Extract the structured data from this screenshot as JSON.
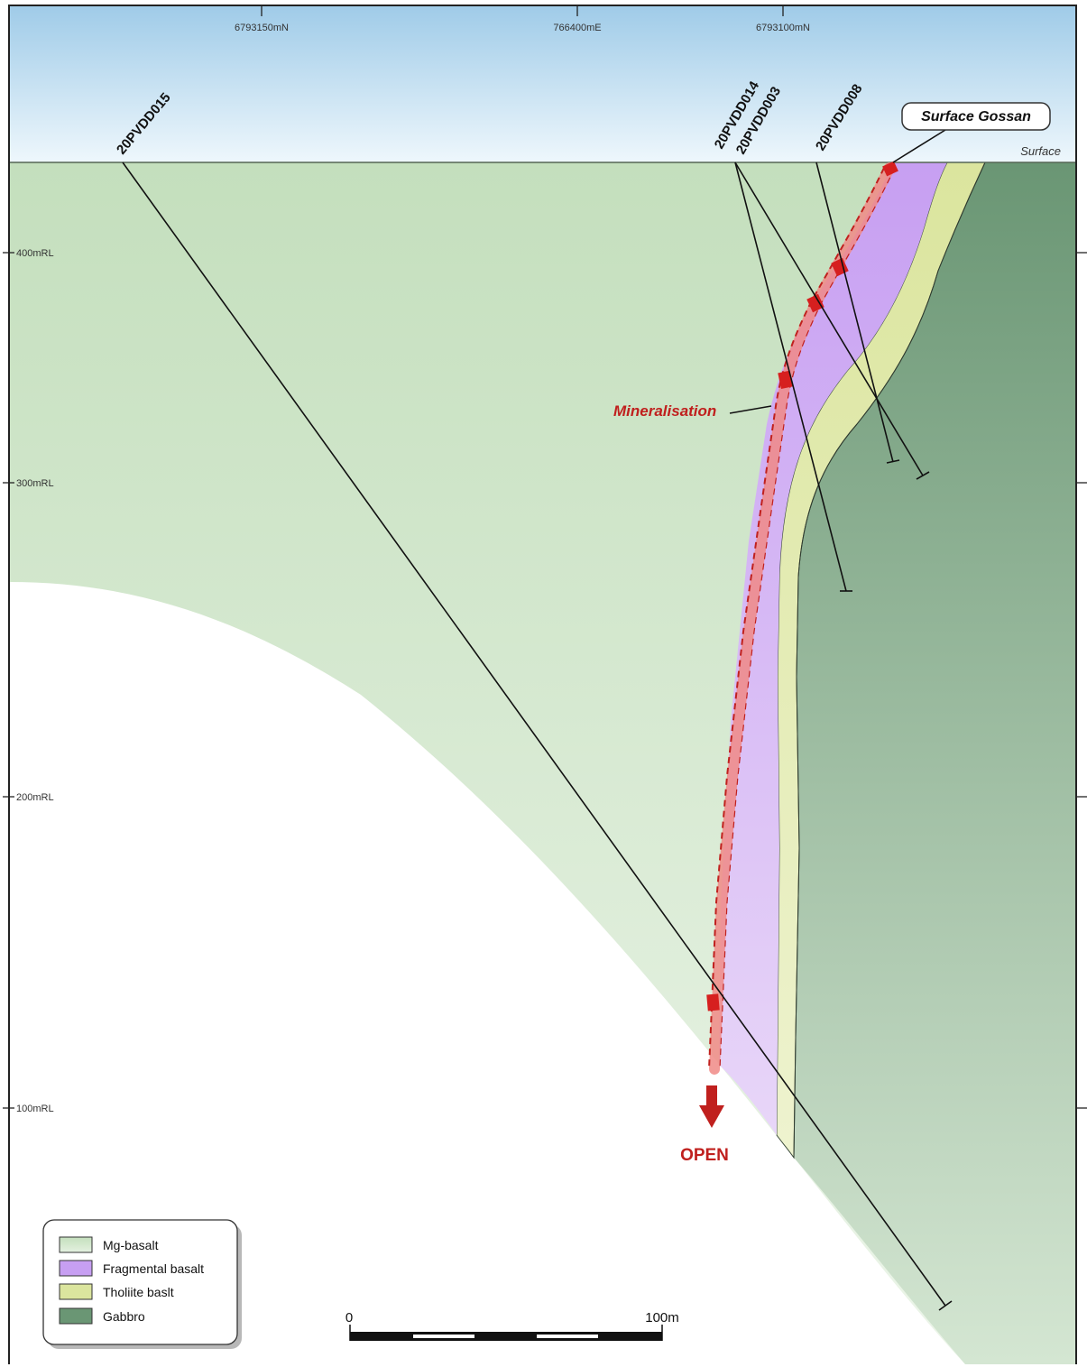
{
  "colors": {
    "mg_basalt": "#c9e2c2",
    "fragmental_basalt": "#cda8f2",
    "tholiite_basalt": "#e0e8a8",
    "gabbro": "#6f9a78",
    "mineralisation": "#c0201e",
    "sky": "#cfe6f5"
  },
  "grid": {
    "northings": [
      "6793150mN",
      "766400mE",
      "6793100mN"
    ],
    "levels": [
      "400mRL",
      "300mRL",
      "200mRL",
      "100mRL"
    ]
  },
  "holes": [
    "20PVDD015",
    "20PVDD014",
    "20PVDD003",
    "20PVDD008"
  ],
  "labels": {
    "surface": "Surface",
    "surface_gossan": "Surface Gossan",
    "mineralisation": "Mineralisation",
    "open": "OPEN"
  },
  "legend": {
    "items": [
      {
        "label": "Mg-basalt",
        "color": "#c9e2c2"
      },
      {
        "label": "Fragmental basalt",
        "color": "#cda8f2"
      },
      {
        "label": "Tholiite baslt",
        "color": "#e0e8a8"
      },
      {
        "label": "Gabbro",
        "color": "#6f9a78"
      }
    ]
  },
  "scale_bar": {
    "start": "0",
    "end": "100m"
  }
}
